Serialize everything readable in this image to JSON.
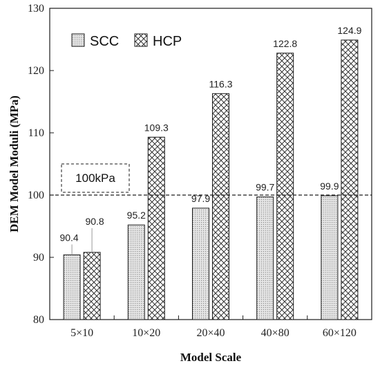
{
  "chart_data": {
    "type": "bar",
    "categories": [
      "5×10",
      "10×20",
      "20×40",
      "40×80",
      "60×120"
    ],
    "series": [
      {
        "name": "SCC",
        "values": [
          90.4,
          95.2,
          97.9,
          99.7,
          99.9
        ],
        "pattern": "dots"
      },
      {
        "name": "HCP",
        "values": [
          90.8,
          109.3,
          116.3,
          122.8,
          124.9
        ],
        "pattern": "crosshatch"
      }
    ],
    "data_labels": [
      [
        "90.4",
        "95.2",
        "97.9",
        "99.7",
        "99.9"
      ],
      [
        "90.8",
        "109.3",
        "116.3",
        "122.8",
        "124.9"
      ]
    ],
    "xlabel": "Model Scale",
    "ylabel": "DEM Model Moduli (MPa)",
    "ylim": [
      80,
      130
    ],
    "yticks": [
      80,
      90,
      100,
      110,
      120,
      130
    ],
    "reference_line": {
      "value": 100,
      "label": "100kPa",
      "style": "dashed"
    },
    "legend_position": "top-left",
    "grid": false,
    "colors": {
      "bar_fill": "#d9d9d9",
      "bar_stroke": "#1a1a1a",
      "pattern_stroke": "#333333"
    }
  }
}
